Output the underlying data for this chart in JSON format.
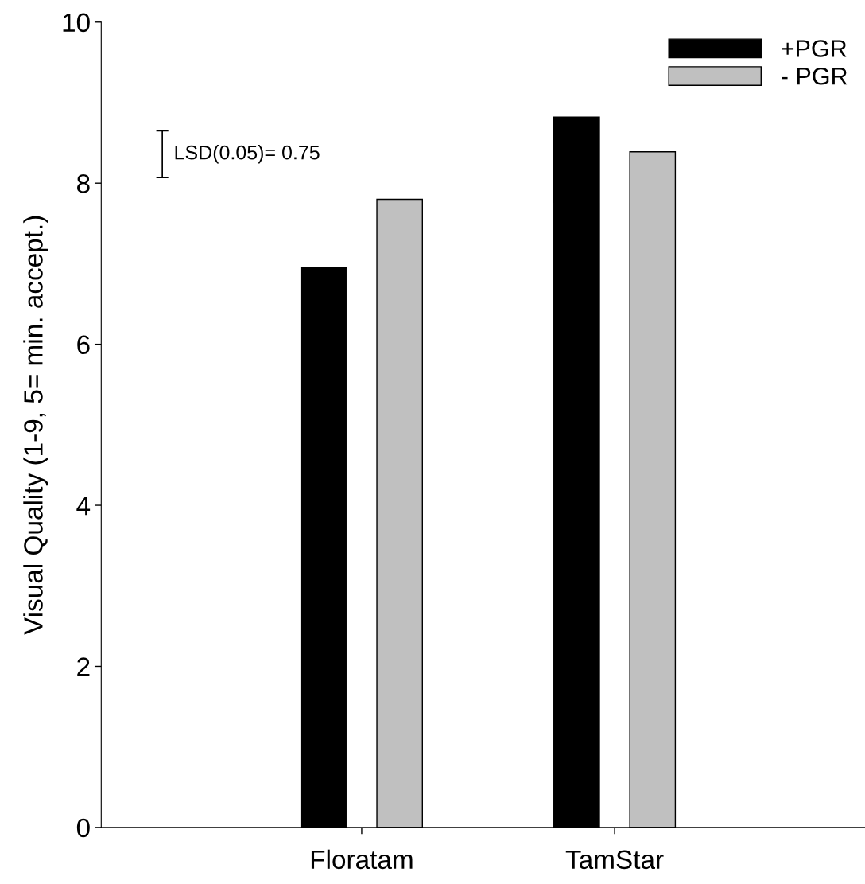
{
  "chart_data": {
    "type": "bar",
    "ylabel": "Visual Quality (1-9, 5= min. accept.)",
    "categories": [
      "Floratam",
      "TamStar"
    ],
    "series": [
      {
        "name": "+PGR",
        "color": "#000000",
        "values": [
          6.95,
          8.82
        ]
      },
      {
        "name": "- PGR",
        "color": "#c0c0c0",
        "values": [
          7.8,
          8.39
        ]
      }
    ],
    "ylim": [
      0,
      10
    ],
    "yticks": [
      0,
      2,
      4,
      6,
      8,
      10
    ],
    "grid": false,
    "legend": "top right",
    "annotations": [
      "LSD(0.05)= 0.75"
    ]
  }
}
